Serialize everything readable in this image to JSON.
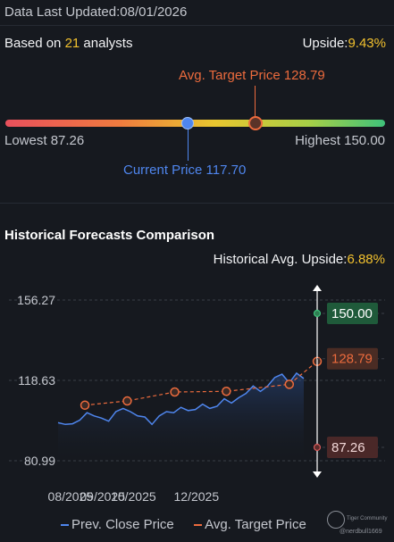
{
  "header": {
    "updated_label": "Data Last Updated:",
    "updated_date": "08/01/2026"
  },
  "summary": {
    "based_prefix": "Based on ",
    "analyst_count": "21",
    "based_suffix": " analysts",
    "upside_label": "Upside:",
    "upside_value": "9.43%"
  },
  "range": {
    "avg_target_label": "Avg. Target Price 128.79",
    "lowest_label": "Lowest 87.26",
    "highest_label": "Highest 150.00",
    "current_label": "Current Price 117.70",
    "low": 87.26,
    "high": 150.0,
    "current": 117.7,
    "avg_target": 128.79
  },
  "historical": {
    "title": "Historical Forecasts Comparison",
    "upside_label": "Historical Avg. Upside:",
    "upside_value": "6.88%"
  },
  "legend": {
    "prev_close": "Prev. Close Price",
    "avg_target": "Avg. Target Price"
  },
  "branding": {
    "name": "Tiger Community",
    "user": "@nerdbull1669"
  },
  "colors": {
    "close": "#4f86ee",
    "target": "#ec6b3d",
    "high": "#3fc27a",
    "low": "#b54444",
    "accent": "#f2c12e"
  },
  "chart_data": {
    "type": "line",
    "x_tick_labels": [
      "08/2025",
      "09/2025",
      "10/2025",
      "12/2025"
    ],
    "x_ticks": [
      "2025-08-01",
      "2025-09-01",
      "2025-10-01",
      "2025-12-01"
    ],
    "y_ticks": [
      80.99,
      118.63,
      156.27
    ],
    "ylim": [
      80.99,
      156.27
    ],
    "series": [
      {
        "name": "Prev. Close Price",
        "style": "line-area",
        "x": [
          "2025-07-20",
          "2025-07-27",
          "2025-08-03",
          "2025-08-10",
          "2025-08-17",
          "2025-08-24",
          "2025-08-31",
          "2025-09-07",
          "2025-09-14",
          "2025-09-21",
          "2025-09-28",
          "2025-10-05",
          "2025-10-12",
          "2025-10-19",
          "2025-10-26",
          "2025-11-02",
          "2025-11-09",
          "2025-11-16",
          "2025-11-23",
          "2025-11-30",
          "2025-12-07",
          "2025-12-14",
          "2025-12-21",
          "2025-12-28",
          "2026-01-04",
          "2026-01-11",
          "2026-01-18",
          "2026-01-25",
          "2026-02-01",
          "2026-02-08",
          "2026-02-15",
          "2026-02-22",
          "2026-03-01",
          "2026-03-08",
          "2026-03-15"
        ],
        "values": [
          98.8,
          98.0,
          98.3,
          100.0,
          103.5,
          102.0,
          101.0,
          99.5,
          104.0,
          105.5,
          104.0,
          102.0,
          101.5,
          98.0,
          102.0,
          104.0,
          103.5,
          106.0,
          104.5,
          105.0,
          107.5,
          105.5,
          106.5,
          110.0,
          108.0,
          110.5,
          112.5,
          116.0,
          113.5,
          116.0,
          120.0,
          121.5,
          117.5,
          122.0,
          119.5
        ]
      },
      {
        "name": "Avg. Target Price",
        "style": "dashed-markers",
        "x": [
          "2025-08-15",
          "2025-09-25",
          "2025-11-10",
          "2025-12-30",
          "2026-03-01",
          "2026-03-28"
        ],
        "values": [
          107.0,
          109.0,
          113.2,
          113.5,
          116.8,
          127.5
        ]
      }
    ],
    "forecast_range": {
      "high": {
        "value": 150.0,
        "label": "150.00"
      },
      "avg": {
        "value": 128.79,
        "label": "128.79"
      },
      "low": {
        "value": 87.26,
        "label": "87.26"
      }
    },
    "grid": true
  }
}
